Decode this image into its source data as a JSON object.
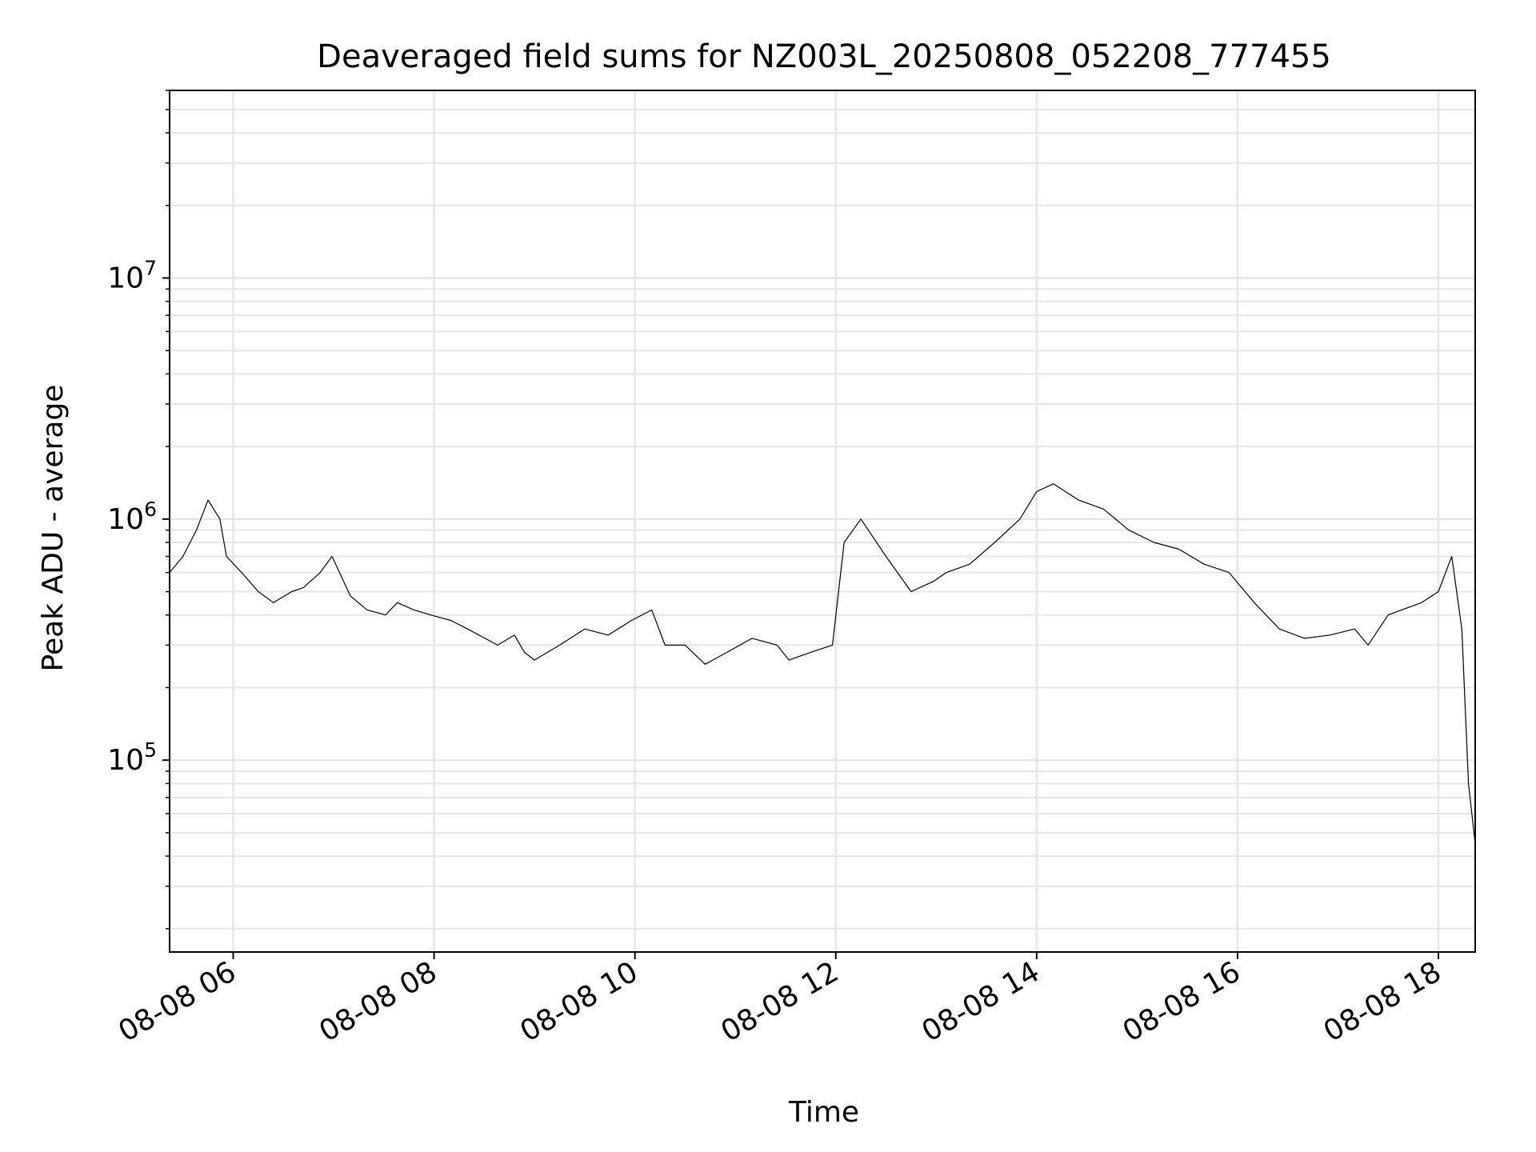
{
  "chart_data": {
    "type": "line",
    "title": "Deaveraged field sums for NZ003L_20250808_052208_777455",
    "xlabel": "Time",
    "ylabel": "Peak ADU - average",
    "yscale": "log",
    "ylim": [
      16000,
      60000000
    ],
    "xlim": [
      "2025-08-08 05:22",
      "2025-08-08 18:22"
    ],
    "x_ticks": [
      "08-08 06",
      "08-08 08",
      "08-08 10",
      "08-08 12",
      "08-08 14",
      "08-08 16",
      "08-08 18"
    ],
    "y_ticks": [
      {
        "base": "10",
        "exp": "5",
        "value": 100000
      },
      {
        "base": "10",
        "exp": "6",
        "value": 1000000
      },
      {
        "base": "10",
        "exp": "7",
        "value": 10000000
      }
    ],
    "grid": true,
    "line_color": "#000000",
    "series": [
      {
        "x": [
          "2025-08-08 05:22",
          "2025-08-08 05:30",
          "2025-08-08 05:38",
          "2025-08-08 05:45",
          "2025-08-08 05:52",
          "2025-08-08 05:56",
          "2025-08-08 06:05",
          "2025-08-08 06:15",
          "2025-08-08 06:24",
          "2025-08-08 06:35",
          "2025-08-08 06:42",
          "2025-08-08 06:52",
          "2025-08-08 06:59",
          "2025-08-08 07:10",
          "2025-08-08 07:20",
          "2025-08-08 07:31",
          "2025-08-08 07:38",
          "2025-08-08 07:48",
          "2025-08-08 07:58",
          "2025-08-08 08:10",
          "2025-08-08 08:20",
          "2025-08-08 08:38",
          "2025-08-08 08:48",
          "2025-08-08 08:54",
          "2025-08-08 09:00",
          "2025-08-08 09:15",
          "2025-08-08 09:30",
          "2025-08-08 09:44",
          "2025-08-08 09:58",
          "2025-08-08 10:10",
          "2025-08-08 10:18",
          "2025-08-08 10:30",
          "2025-08-08 10:42",
          "2025-08-08 10:55",
          "2025-08-08 11:10",
          "2025-08-08 11:25",
          "2025-08-08 11:32",
          "2025-08-08 11:45",
          "2025-08-08 11:58",
          "2025-08-08 12:05",
          "2025-08-08 12:15",
          "2025-08-08 12:30",
          "2025-08-08 12:45",
          "2025-08-08 12:58",
          "2025-08-08 13:06",
          "2025-08-08 13:20",
          "2025-08-08 13:35",
          "2025-08-08 13:50",
          "2025-08-08 14:00",
          "2025-08-08 14:10",
          "2025-08-08 14:25",
          "2025-08-08 14:40",
          "2025-08-08 14:55",
          "2025-08-08 15:10",
          "2025-08-08 15:25",
          "2025-08-08 15:40",
          "2025-08-08 15:55",
          "2025-08-08 16:10",
          "2025-08-08 16:25",
          "2025-08-08 16:40",
          "2025-08-08 16:55",
          "2025-08-08 17:10",
          "2025-08-08 17:18",
          "2025-08-08 17:30",
          "2025-08-08 17:38",
          "2025-08-08 17:50",
          "2025-08-08 18:00",
          "2025-08-08 18:08",
          "2025-08-08 18:14",
          "2025-08-08 18:18",
          "2025-08-08 18:22"
        ],
        "y": [
          600000,
          700000,
          900000,
          1200000,
          1000000,
          700000,
          600000,
          500000,
          450000,
          500000,
          520000,
          600000,
          700000,
          480000,
          420000,
          400000,
          450000,
          420000,
          400000,
          380000,
          350000,
          300000,
          330000,
          280000,
          260000,
          300000,
          350000,
          330000,
          380000,
          420000,
          300000,
          300000,
          250000,
          280000,
          320000,
          300000,
          260000,
          280000,
          300000,
          800000,
          1000000,
          700000,
          500000,
          550000,
          600000,
          650000,
          800000,
          1000000,
          1300000,
          1400000,
          1200000,
          1100000,
          900000,
          800000,
          750000,
          650000,
          600000,
          450000,
          350000,
          320000,
          330000,
          350000,
          300000,
          400000,
          420000,
          450000,
          500000,
          700000,
          350000,
          80000,
          45000
        ]
      }
    ]
  }
}
